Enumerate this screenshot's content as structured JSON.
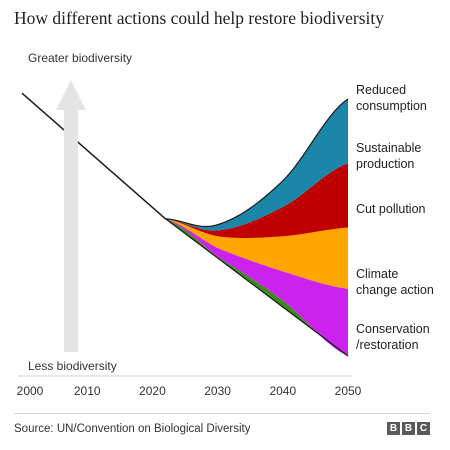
{
  "title": "How different actions could help restore biodiversity",
  "source": "Source: UN/Convention on Biological Diversity",
  "logo": [
    "B",
    "B",
    "C"
  ],
  "chart_data": {
    "type": "area",
    "title": "How different actions could help restore biodiversity",
    "xlabel": "",
    "ylabel": "",
    "xlim": [
      2000,
      2050
    ],
    "x_ticks": [
      2000,
      2010,
      2020,
      2030,
      2040,
      2050
    ],
    "ylim": [
      0,
      100
    ],
    "axis_annotations": {
      "top": "Greater biodiversity",
      "bottom": "Less biodiversity"
    },
    "baseline_history": {
      "x": [
        2000,
        2022
      ],
      "y": [
        90,
        47
      ]
    },
    "series": [
      {
        "name": "Conservation /restoration",
        "label_lines": [
          "Conservation",
          "/restoration"
        ],
        "color": "#3c8a1e",
        "x": [
          2022,
          2030,
          2040,
          2050
        ],
        "y": [
          47,
          34,
          19,
          0
        ]
      },
      {
        "name": "Climate change action",
        "label_lines": [
          "Climate",
          "change action"
        ],
        "color": "#cc22ee",
        "x": [
          2022,
          2030,
          2040,
          2050
        ],
        "y": [
          47,
          37,
          29,
          23
        ]
      },
      {
        "name": "Cut pollution",
        "label_lines": [
          "Cut pollution"
        ],
        "color": "#ffa500",
        "x": [
          2022,
          2030,
          2040,
          2050
        ],
        "y": [
          47,
          41,
          41,
          44
        ]
      },
      {
        "name": "Sustainable production",
        "label_lines": [
          "Sustainable",
          "production"
        ],
        "color": "#c00000",
        "x": [
          2022,
          2030,
          2040,
          2050
        ],
        "y": [
          47,
          43,
          51,
          66
        ]
      },
      {
        "name": "Reduced consumption",
        "label_lines": [
          "Reduced",
          "consumption"
        ],
        "color": "#1c86a8",
        "x": [
          2022,
          2030,
          2040,
          2050
        ],
        "y": [
          47,
          45,
          60,
          88
        ]
      }
    ],
    "grid": false,
    "legend": "right"
  }
}
